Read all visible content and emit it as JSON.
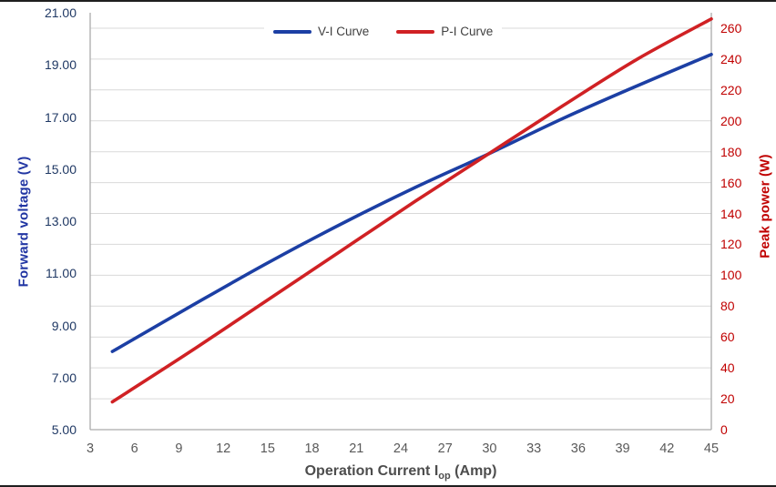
{
  "chart_data": {
    "type": "line",
    "x": [
      4.5,
      10,
      15,
      20,
      25,
      30,
      35,
      40,
      45
    ],
    "series": [
      {
        "name": "V-I Curve",
        "axis": "left",
        "color": "#1C3FA4",
        "values": [
          8.0,
          9.8,
          11.4,
          12.9,
          14.3,
          15.6,
          16.95,
          18.2,
          19.4
        ]
      },
      {
        "name": "P-I Curve",
        "axis": "right",
        "color": "#D02124",
        "values": [
          18,
          52,
          84,
          116,
          148,
          179,
          210,
          240,
          266
        ]
      }
    ],
    "x_axis": {
      "title_main": "Operation Current I",
      "title_sub": "op",
      "title_rest": " (Amp)",
      "min": 3,
      "max": 45,
      "ticks": [
        3,
        6,
        9,
        12,
        15,
        18,
        21,
        24,
        27,
        30,
        33,
        36,
        39,
        42,
        45
      ]
    },
    "left_axis": {
      "title": "Forward voltage (V)",
      "min": 5,
      "max": 21,
      "tick_labels": [
        "21.00",
        "19.00",
        "17.00",
        "15.00",
        "13.00",
        "11.00",
        "9.00",
        "7.00",
        "5.00"
      ],
      "tick_values": [
        21,
        19,
        17,
        15,
        13,
        11,
        9,
        7,
        5
      ]
    },
    "right_axis": {
      "title": "Peak power (W)",
      "min": 0,
      "max": 270,
      "ticks": [
        260,
        240,
        220,
        200,
        180,
        160,
        140,
        120,
        100,
        80,
        60,
        40,
        20,
        0
      ]
    },
    "legend_position": "top-center",
    "grid": "horizontal-only"
  },
  "colors": {
    "grid_line": "#D9D9D9",
    "axis_line": "#ABABAB",
    "left_tick_text": "#1F3864",
    "right_tick_text": "#C00000",
    "x_tick_text": "#595959",
    "legend_text": "#404040"
  }
}
